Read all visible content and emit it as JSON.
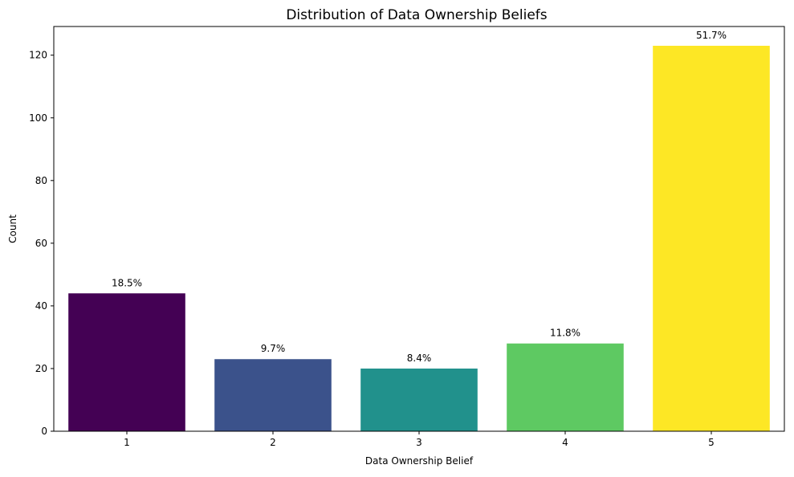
{
  "chart_data": {
    "type": "bar",
    "title": "Distribution of Data Ownership Beliefs",
    "xlabel": "Data Ownership Belief",
    "ylabel": "Count",
    "categories": [
      "1",
      "2",
      "3",
      "4",
      "5"
    ],
    "values": [
      44,
      23,
      20,
      28,
      123
    ],
    "data_labels": [
      "18.5%",
      "9.7%",
      "8.4%",
      "11.8%",
      "51.7%"
    ],
    "colors": [
      "#440154",
      "#3b528b",
      "#21918c",
      "#5ec962",
      "#fde725"
    ],
    "ylim": [
      0,
      129.15
    ],
    "yticks": [
      0,
      20,
      40,
      60,
      80,
      100,
      120
    ],
    "grid": false,
    "legend": "none"
  }
}
